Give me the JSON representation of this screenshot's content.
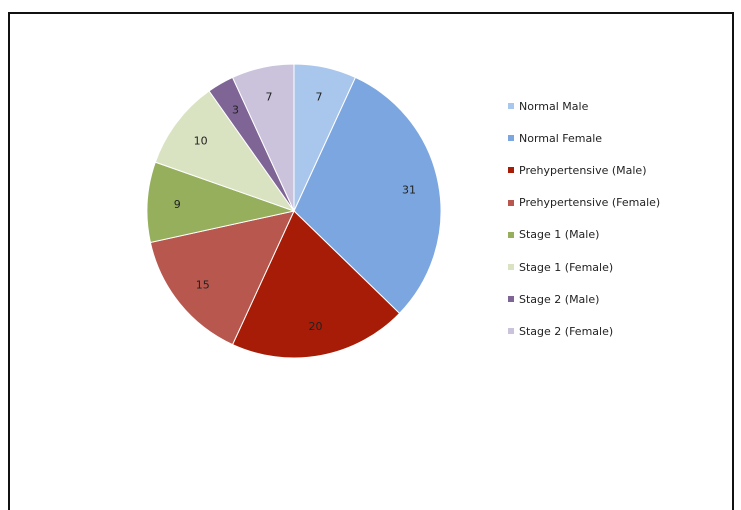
{
  "chart_data": {
    "type": "pie",
    "title": "",
    "legend_position": "right",
    "start_angle_deg": 0,
    "direction": "clockwise",
    "slices": [
      {
        "label": "Normal Male",
        "value": 7,
        "color": "#a9c6ec"
      },
      {
        "label": "Normal Female",
        "value": 31,
        "color": "#7ca6df"
      },
      {
        "label": "Prehypertensive (Male)",
        "value": 20,
        "color": "#a61c06"
      },
      {
        "label": "Prehypertensive (Female)",
        "value": 15,
        "color": "#b8574e"
      },
      {
        "label": "Stage 1 (Male)",
        "value": 9,
        "color": "#95af5c"
      },
      {
        "label": "Stage 1 (Female)",
        "value": 10,
        "color": "#d9e3c1"
      },
      {
        "label": "Stage 2 (Male)",
        "value": 3,
        "color": "#7e6596"
      },
      {
        "label": "Stage 2 (Female)",
        "value": 7,
        "color": "#cbc3dc"
      }
    ]
  }
}
